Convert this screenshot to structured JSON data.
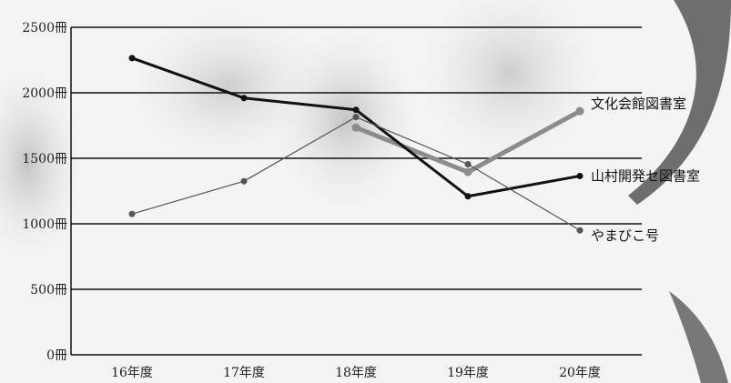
{
  "chart_data": {
    "type": "line",
    "categories": [
      "16年度",
      "17年度",
      "18年度",
      "19年度",
      "20年度"
    ],
    "ylim": [
      0,
      2500
    ],
    "yticks": [
      {
        "value": 0,
        "label": "0冊"
      },
      {
        "value": 500,
        "label": "500冊"
      },
      {
        "value": 1000,
        "label": "1000冊"
      },
      {
        "value": 1500,
        "label": "1500冊"
      },
      {
        "value": 2000,
        "label": "2000冊"
      },
      {
        "value": 2500,
        "label": "2500冊"
      }
    ],
    "grid": true,
    "legend_position": "right, next to line ends",
    "series": [
      {
        "name": "文化会館図書室",
        "values": [
          null,
          null,
          1735,
          1395,
          1860
        ],
        "color": "#8c8c8c"
      },
      {
        "name": "山村開発セ図書室",
        "values": [
          2265,
          1960,
          1870,
          1210,
          1365
        ],
        "color": "#111111"
      },
      {
        "name": "やまびこ号",
        "values": [
          1075,
          1325,
          1815,
          1455,
          950
        ],
        "color": "#555555"
      }
    ]
  }
}
